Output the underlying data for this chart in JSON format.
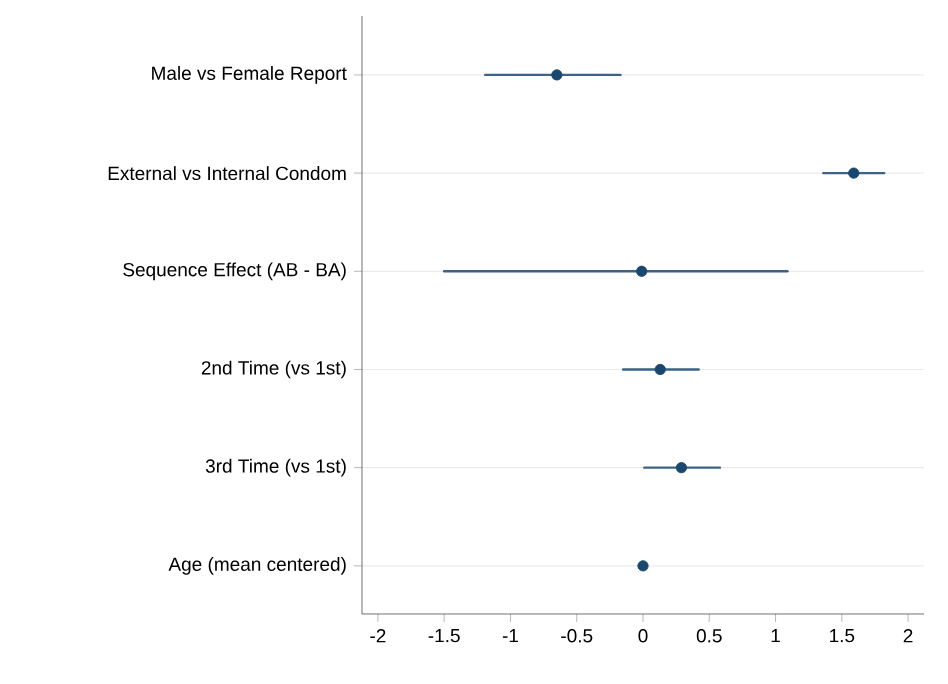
{
  "chart_data": {
    "type": "scatter",
    "orientation": "horizontal",
    "categories": [
      "Male vs Female Report",
      "External vs Internal Condom",
      "Sequence Effect (AB - BA)",
      "2nd Time (vs 1st)",
      "3rd Time (vs 1st)",
      "Age (mean centered)"
    ],
    "values": [
      -0.65,
      1.59,
      -0.01,
      0.13,
      0.29,
      0.0
    ],
    "errors": [
      [
        -1.19,
        -0.17
      ],
      [
        1.36,
        1.82
      ],
      [
        -1.5,
        1.09
      ],
      [
        -0.15,
        0.42
      ],
      [
        0.01,
        0.58
      ],
      [
        -0.03,
        0.03
      ]
    ],
    "color": "#1a476f",
    "grid": "y",
    "xlim": [
      -2.12,
      2.12
    ],
    "xticks": [
      -2,
      -1.5,
      -1,
      -0.5,
      0,
      0.5,
      1,
      1.5,
      2
    ]
  }
}
